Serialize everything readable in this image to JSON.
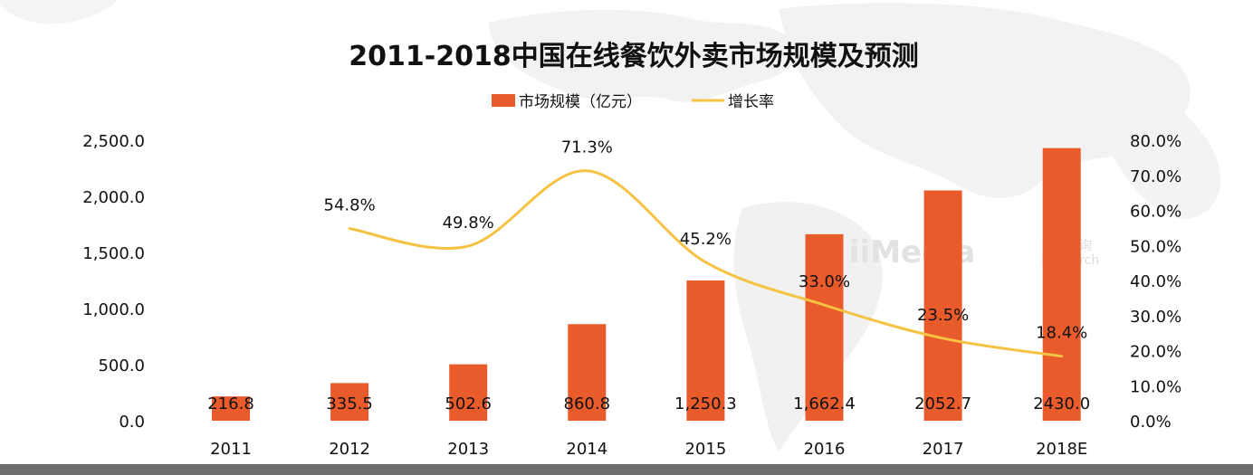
{
  "chart_data": {
    "type": "bar",
    "title": "2011-2018中国在线餐饮外卖市场规模及预测",
    "categories": [
      "2011",
      "2012",
      "2013",
      "2014",
      "2015",
      "2016",
      "2017",
      "2018E"
    ],
    "series": [
      {
        "name": "市场规模（亿元）",
        "type": "bar",
        "axis": "left",
        "color": "#ea5b2c",
        "values": [
          216.8,
          335.5,
          502.6,
          860.8,
          1250.3,
          1662.4,
          2052.7,
          2430.0
        ],
        "labels": [
          "216.8",
          "335.5",
          "502.6",
          "860.8",
          "1,250.3",
          "1,662.4",
          "2052.7",
          "2430.0"
        ]
      },
      {
        "name": "增长率",
        "type": "line",
        "axis": "right",
        "color": "#f5c242",
        "values": [
          null,
          54.8,
          49.8,
          71.3,
          45.2,
          33.0,
          23.5,
          18.4
        ],
        "labels": [
          "",
          "54.8%",
          "49.8%",
          "71.3%",
          "45.2%",
          "33.0%",
          "23.5%",
          "18.4%"
        ]
      }
    ],
    "y_left": {
      "ylim": [
        0,
        2500
      ],
      "ticks": [
        "0.0",
        "500.0",
        "1,000.0",
        "1,500.0",
        "2,000.0",
        "2,500.0"
      ]
    },
    "y_right": {
      "ylim": [
        0,
        80
      ],
      "ticks": [
        "0.0%",
        "10.0%",
        "20.0%",
        "30.0%",
        "40.0%",
        "50.0%",
        "60.0%",
        "70.0%",
        "80.0%"
      ]
    },
    "legend": {
      "position": "top",
      "items": [
        "市场规模（亿元）",
        "增长率"
      ]
    },
    "grid": false
  },
  "watermark": {
    "text": "iiMedia",
    "cn": "艾媒咨询",
    "en": "Research"
  }
}
